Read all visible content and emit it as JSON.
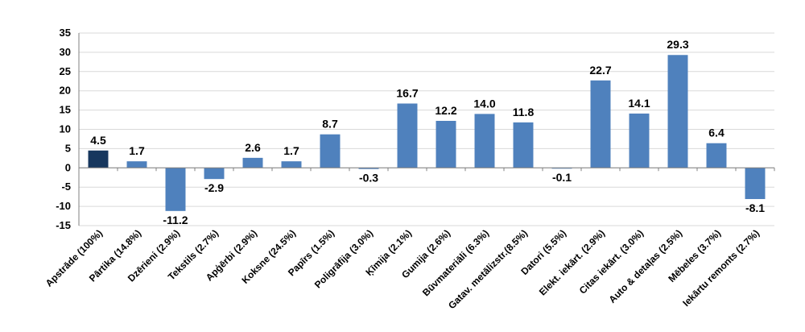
{
  "chart_data": {
    "type": "bar",
    "title": "",
    "xlabel": "",
    "ylabel": "",
    "ylim": [
      -15,
      35
    ],
    "yticks": [
      35,
      30,
      25,
      20,
      15,
      10,
      5,
      0,
      -5,
      -10,
      -15
    ],
    "grid": true,
    "categories": [
      "Apstrāde (100%)",
      "Pārtika (14.8%)",
      "Dzērieni (2.9%)",
      "Tekstils (2.7%)",
      "Apģērbi (2.9%)",
      "Koksne (24.5%)",
      "Papīrs (1.5%)",
      "Poligrāfija (3.0%)",
      "Ķīmija (2.1%)",
      "Gumija (2.6%)",
      "Būvmateriāli (6.3%)",
      "Gatav. metālizstr.(8.5%)",
      "Datori (5.5%)",
      "Elekt. iekārt. (2.9%)",
      "Citas iekārt. (3.0%)",
      "Auto & detaļas (2.5%)",
      "Mēbeles (3.7%)",
      "Iekārtu remonts (2.7%)"
    ],
    "values": [
      4.5,
      1.7,
      -11.2,
      -2.9,
      2.6,
      1.7,
      8.7,
      -0.3,
      16.7,
      12.2,
      14.0,
      11.8,
      -0.1,
      22.7,
      14.1,
      29.3,
      6.4,
      -8.1
    ],
    "value_labels": [
      "4.5",
      "1.7",
      "-11.2",
      "-2.9",
      "2.6",
      "1.7",
      "8.7",
      "-0.3",
      "16.7",
      "12.2",
      "14.0",
      "11.8",
      "-0.1",
      "22.7",
      "14.1",
      "29.3",
      "6.4",
      "-8.1"
    ],
    "highlight_index": 0,
    "colors": {
      "highlight": "#17375e",
      "bar": "#4f81bd",
      "grid": "#d9d9d9",
      "axis": "#808080"
    }
  }
}
